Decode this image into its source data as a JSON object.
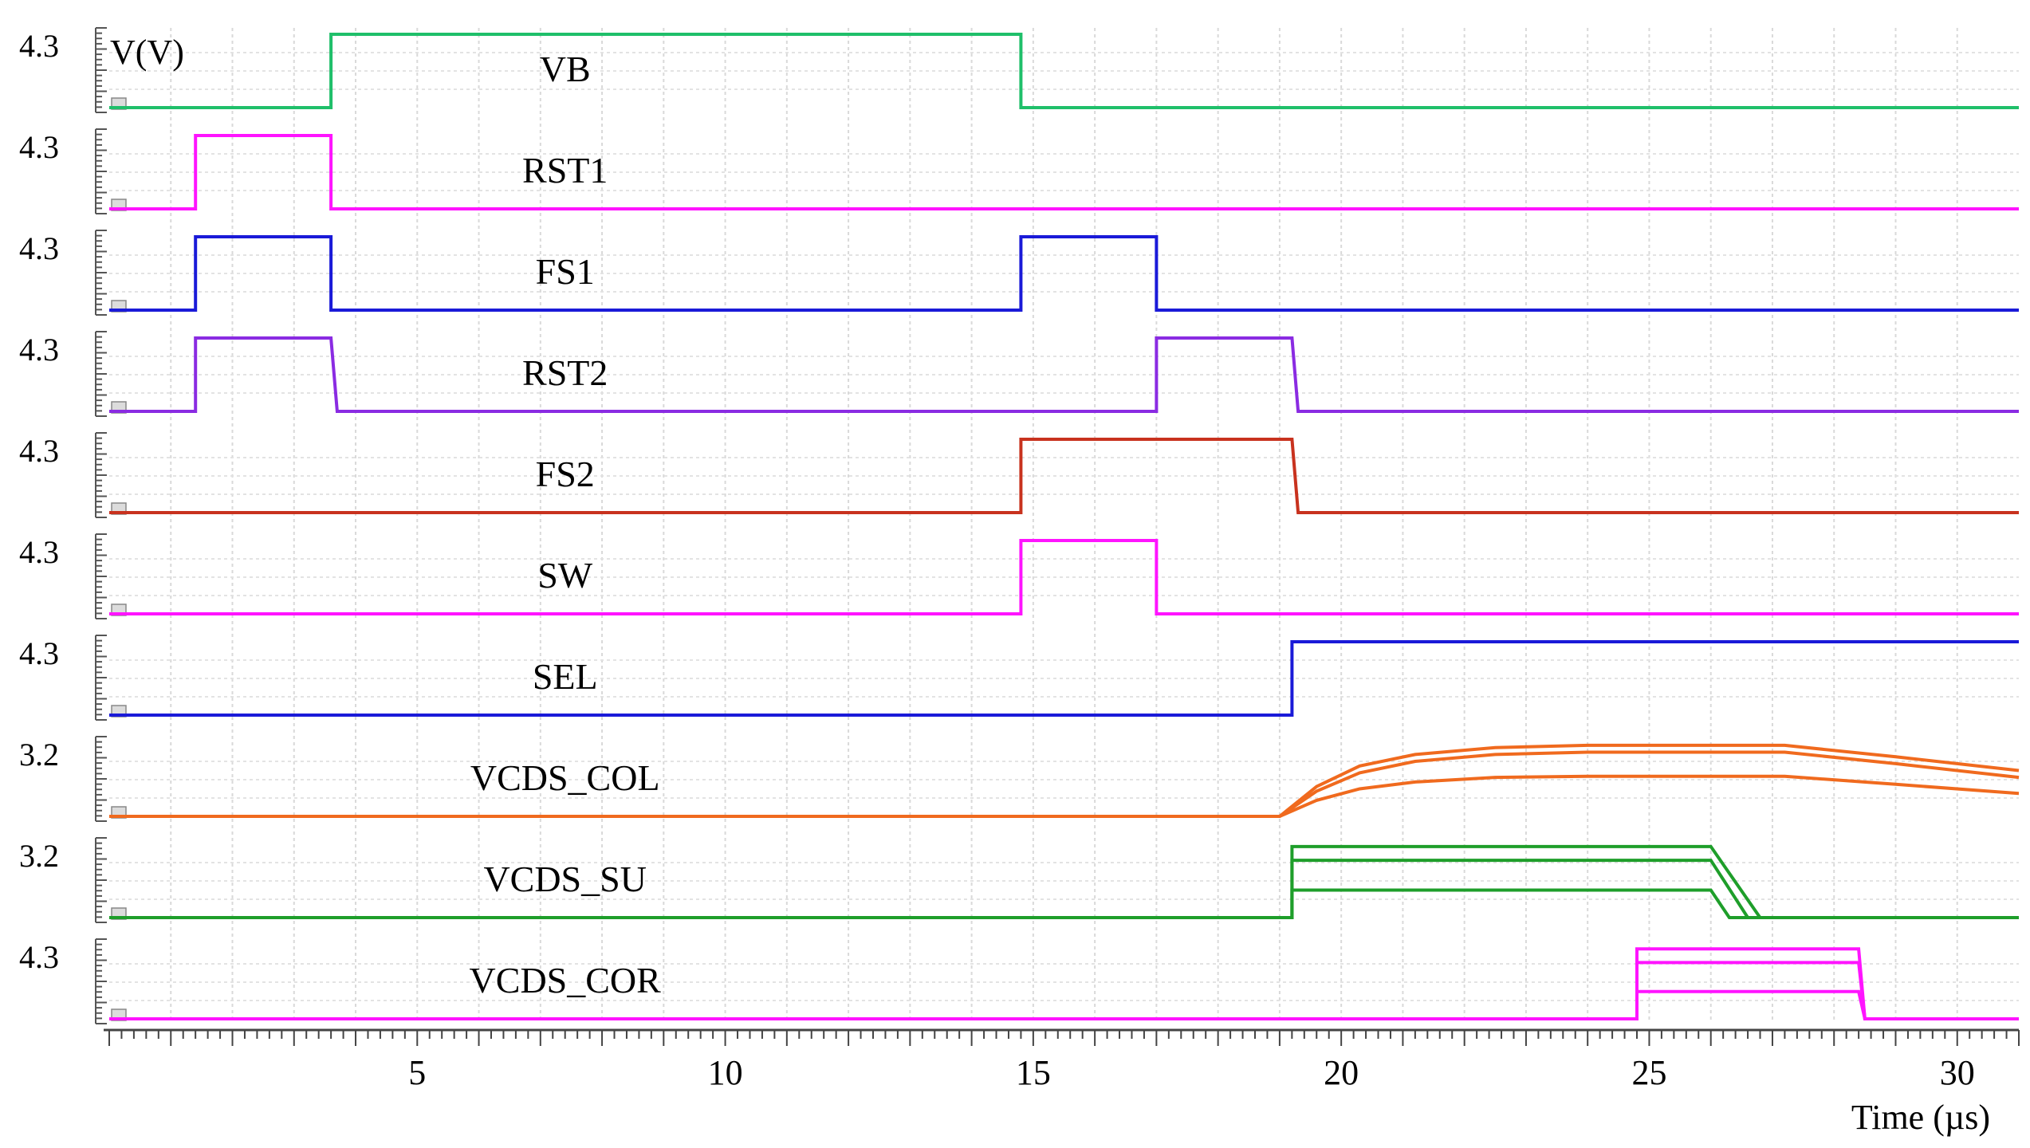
{
  "chart_data": {
    "type": "line",
    "title": "",
    "ylabel": "V(V)",
    "xlabel": "Time (µs)",
    "xlim": [
      0,
      31
    ],
    "grid": true,
    "xticks": [
      5,
      10,
      15,
      20,
      25,
      30
    ],
    "xtick_labels": [
      "5",
      "10",
      "15",
      "20",
      "25",
      "30"
    ],
    "series": [
      {
        "name": "VB",
        "ymax_label": "4.3",
        "color": "#1fbf6a",
        "ylim": [
          0,
          4.3
        ],
        "traces": [
          [
            [
              0,
              0
            ],
            [
              3.6,
              0
            ],
            [
              3.6,
              4.3
            ],
            [
              14.8,
              4.3
            ],
            [
              14.8,
              0
            ],
            [
              31,
              0
            ]
          ]
        ]
      },
      {
        "name": "RST1",
        "ymax_label": "4.3",
        "color": "#ff14ff",
        "ylim": [
          0,
          4.3
        ],
        "traces": [
          [
            [
              0,
              0
            ],
            [
              1.4,
              0
            ],
            [
              1.4,
              4.3
            ],
            [
              3.6,
              4.3
            ],
            [
              3.6,
              0
            ],
            [
              31,
              0
            ]
          ]
        ]
      },
      {
        "name": "FS1",
        "ymax_label": "4.3",
        "color": "#1a1ad8",
        "ylim": [
          0,
          4.3
        ],
        "traces": [
          [
            [
              0,
              0
            ],
            [
              1.4,
              0
            ],
            [
              1.4,
              4.3
            ],
            [
              3.6,
              4.3
            ],
            [
              3.6,
              0
            ],
            [
              14.8,
              0
            ],
            [
              14.8,
              4.3
            ],
            [
              17.0,
              4.3
            ],
            [
              17.0,
              0
            ],
            [
              31,
              0
            ]
          ]
        ]
      },
      {
        "name": "RST2",
        "ymax_label": "4.3",
        "color": "#8a2be2",
        "ylim": [
          0,
          4.3
        ],
        "traces": [
          [
            [
              0,
              0
            ],
            [
              1.4,
              0
            ],
            [
              1.4,
              4.3
            ],
            [
              3.6,
              4.3
            ],
            [
              3.7,
              0
            ],
            [
              17.0,
              0
            ],
            [
              17.0,
              4.3
            ],
            [
              19.2,
              4.3
            ],
            [
              19.3,
              0
            ],
            [
              31,
              0
            ]
          ]
        ]
      },
      {
        "name": "FS2",
        "ymax_label": "4.3",
        "color": "#c8321e",
        "ylim": [
          0,
          4.3
        ],
        "traces": [
          [
            [
              0,
              0
            ],
            [
              14.8,
              0
            ],
            [
              14.8,
              4.3
            ],
            [
              19.2,
              4.3
            ],
            [
              19.3,
              0
            ],
            [
              31,
              0
            ]
          ]
        ]
      },
      {
        "name": "SW",
        "ymax_label": "4.3",
        "color": "#ff14ff",
        "ylim": [
          0,
          4.3
        ],
        "traces": [
          [
            [
              0,
              0
            ],
            [
              14.8,
              0
            ],
            [
              14.8,
              4.3
            ],
            [
              17.0,
              4.3
            ],
            [
              17.0,
              0
            ],
            [
              31,
              0
            ]
          ]
        ]
      },
      {
        "name": "SEL",
        "ymax_label": "4.3",
        "color": "#1a1ad8",
        "ylim": [
          0,
          4.3
        ],
        "traces": [
          [
            [
              0,
              0
            ],
            [
              19.2,
              0
            ],
            [
              19.2,
              4.3
            ],
            [
              31,
              4.3
            ]
          ]
        ]
      },
      {
        "name": "VCDS_COL",
        "ymax_label": "3.2",
        "color": "#f06a1e",
        "ylim": [
          0,
          3.2
        ],
        "traces": [
          [
            [
              0,
              0
            ],
            [
              19.0,
              0
            ],
            [
              19.6,
              1.3
            ],
            [
              20.3,
              2.2
            ],
            [
              21.2,
              2.7
            ],
            [
              22.5,
              3.0
            ],
            [
              24,
              3.1
            ],
            [
              27.2,
              3.1
            ],
            [
              29,
              2.6
            ],
            [
              31,
              2.0
            ]
          ],
          [
            [
              0,
              0
            ],
            [
              19.0,
              0
            ],
            [
              19.6,
              1.1
            ],
            [
              20.3,
              1.9
            ],
            [
              21.2,
              2.4
            ],
            [
              22.5,
              2.7
            ],
            [
              24,
              2.8
            ],
            [
              27.2,
              2.8
            ],
            [
              29,
              2.3
            ],
            [
              31,
              1.7
            ]
          ],
          [
            [
              0,
              0
            ],
            [
              19.0,
              0
            ],
            [
              19.6,
              0.7
            ],
            [
              20.3,
              1.2
            ],
            [
              21.2,
              1.5
            ],
            [
              22.5,
              1.7
            ],
            [
              24,
              1.75
            ],
            [
              27.2,
              1.75
            ],
            [
              29,
              1.4
            ],
            [
              31,
              1.0
            ]
          ]
        ]
      },
      {
        "name": "VCDS_SU",
        "ymax_label": "3.2",
        "color": "#1e9e2a",
        "ylim": [
          0,
          3.2
        ],
        "traces": [
          [
            [
              0,
              0
            ],
            [
              19.2,
              0
            ],
            [
              19.2,
              3.1
            ],
            [
              26.0,
              3.1
            ],
            [
              26.8,
              0
            ],
            [
              31,
              0
            ]
          ],
          [
            [
              0,
              0
            ],
            [
              19.2,
              0
            ],
            [
              19.2,
              2.5
            ],
            [
              26.0,
              2.5
            ],
            [
              26.6,
              0
            ],
            [
              31,
              0
            ]
          ],
          [
            [
              0,
              0
            ],
            [
              19.2,
              0
            ],
            [
              19.2,
              1.2
            ],
            [
              26.0,
              1.2
            ],
            [
              26.3,
              0
            ],
            [
              31,
              0
            ]
          ]
        ]
      },
      {
        "name": "VCDS_COR",
        "ymax_label": "4.3",
        "color": "#ff14ff",
        "ylim": [
          0,
          4.3
        ],
        "traces": [
          [
            [
              0,
              0
            ],
            [
              24.8,
              0
            ],
            [
              24.8,
              4.1
            ],
            [
              28.4,
              4.1
            ],
            [
              28.5,
              0
            ],
            [
              31,
              0
            ]
          ],
          [
            [
              0,
              0
            ],
            [
              24.8,
              0
            ],
            [
              24.8,
              3.3
            ],
            [
              28.4,
              3.3
            ],
            [
              28.5,
              0
            ],
            [
              31,
              0
            ]
          ],
          [
            [
              0,
              0
            ],
            [
              24.8,
              0
            ],
            [
              24.8,
              1.6
            ],
            [
              28.4,
              1.6
            ],
            [
              28.5,
              0
            ],
            [
              31,
              0
            ]
          ]
        ]
      }
    ]
  }
}
